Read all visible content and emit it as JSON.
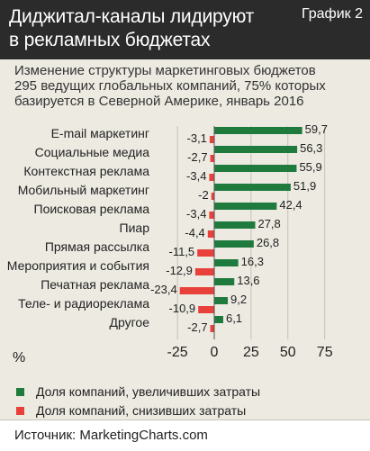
{
  "header": {
    "title_line1": "Диджитал-каналы лидируют",
    "title_line2": "в рекламных бюджетах",
    "badge": "График 2"
  },
  "subtitle": {
    "line1": "Изменение структуры маркетинговых бюджетов",
    "line2": "295 ведущих глобальных компаний, 75% которых",
    "line3": "базируется в Северной Америке, январь 2016"
  },
  "chart_data": {
    "type": "bar",
    "orientation": "horizontal",
    "categories": [
      "E-mail маркетинг",
      "Социальные медиа",
      "Контекстная реклама",
      "Мобильный маркетинг",
      "Поисковая реклама",
      "Пиар",
      "Прямая рассылка",
      "Мероприятия и события",
      "Печатная реклама",
      "Теле- и радиореклама",
      "Другое"
    ],
    "series": [
      {
        "name": "Доля компаний, увеличивших затраты",
        "color": "#1f7a3e",
        "values": [
          59.7,
          56.3,
          55.9,
          51.9,
          42.4,
          27.8,
          26.8,
          16.3,
          13.6,
          9.2,
          6.1
        ],
        "labels": [
          "59,7",
          "56,3",
          "55,9",
          "51,9",
          "42,4",
          "27,8",
          "26,8",
          "16,3",
          "13,6",
          "9,2",
          "6,1"
        ]
      },
      {
        "name": "Доля компаний, снизивших затраты",
        "color": "#e8403a",
        "values": [
          -3.1,
          -2.7,
          -3.4,
          -2,
          -3.4,
          -4.4,
          -11.5,
          -12.9,
          -23.4,
          -10.9,
          -2.7
        ],
        "labels": [
          "-3,1",
          "-2,7",
          "-3,4",
          "-2",
          "-3,4",
          "-4,4",
          "-11,5",
          "-12,9",
          "-23,4",
          "-10,9",
          "-2,7"
        ]
      }
    ],
    "xlim": [
      -32,
      75
    ],
    "xticks": [
      -25,
      0,
      25,
      50,
      75
    ],
    "xtick_labels": [
      "-25",
      "0",
      "25",
      "50",
      "75"
    ],
    "axis_unit": "%",
    "grid": true
  },
  "source": {
    "text": "Источник: MarketingCharts.com"
  }
}
